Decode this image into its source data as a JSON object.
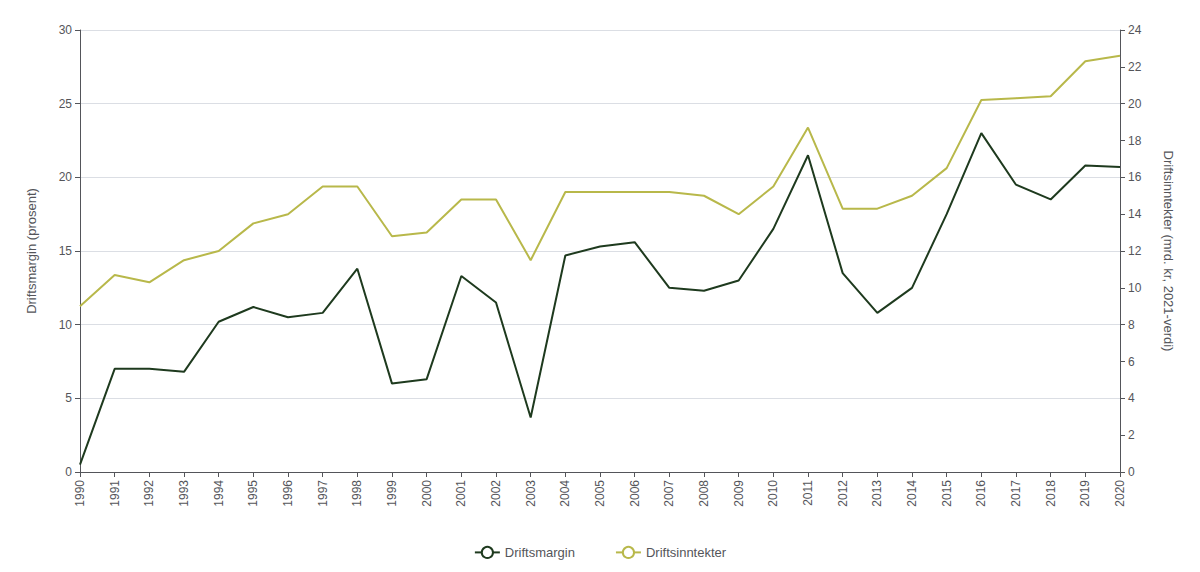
{
  "chart_data": {
    "type": "line",
    "x": [
      1990,
      1991,
      1992,
      1993,
      1994,
      1995,
      1996,
      1997,
      1998,
      1999,
      2000,
      2001,
      2002,
      2003,
      2004,
      2005,
      2006,
      2007,
      2008,
      2009,
      2010,
      2011,
      2012,
      2013,
      2014,
      2015,
      2016,
      2017,
      2018,
      2019,
      2020
    ],
    "series": [
      {
        "name": "Driftsmargin",
        "color": "#1e3a1e",
        "values": [
          0.5,
          7.0,
          7.0,
          6.8,
          10.2,
          11.2,
          10.5,
          10.8,
          13.8,
          6.0,
          6.3,
          13.3,
          11.5,
          3.7,
          14.7,
          15.3,
          15.6,
          12.5,
          12.3,
          13.0,
          16.5,
          21.5,
          13.5,
          10.8,
          12.5,
          17.5,
          23.0,
          19.5,
          18.5,
          20.8,
          20.7
        ]
      },
      {
        "name": "Driftsinntekter",
        "color": "#b8b84a",
        "axis": "y2",
        "values": [
          9.0,
          10.7,
          10.3,
          11.5,
          12.0,
          13.5,
          14.0,
          15.5,
          15.5,
          12.8,
          13.0,
          14.8,
          14.8,
          11.5,
          15.2,
          15.2,
          15.2,
          15.2,
          15.0,
          14.0,
          15.5,
          18.7,
          14.3,
          14.3,
          15.0,
          16.5,
          20.2,
          20.3,
          20.4,
          22.3,
          22.6
        ]
      }
    ],
    "xlim": [
      1990,
      2020
    ],
    "xticks": [
      1990,
      1991,
      1992,
      1993,
      1994,
      1995,
      1996,
      1997,
      1998,
      1999,
      2000,
      2001,
      2002,
      2003,
      2004,
      2005,
      2006,
      2007,
      2008,
      2009,
      2010,
      2011,
      2012,
      2013,
      2014,
      2015,
      2016,
      2017,
      2018,
      2019,
      2020
    ],
    "ylim": [
      0,
      30
    ],
    "yticks": [
      0,
      5,
      10,
      15,
      20,
      25,
      30
    ],
    "y2lim": [
      0,
      24
    ],
    "y2ticks": [
      0,
      2,
      4,
      6,
      8,
      10,
      12,
      14,
      16,
      18,
      20,
      22,
      24
    ],
    "ylabel": "Driftsmargin (prosent)",
    "y2label": "Driftsinntekter (mrd. kr, 2021-verdi)",
    "grid": true,
    "legend": "bottom"
  }
}
